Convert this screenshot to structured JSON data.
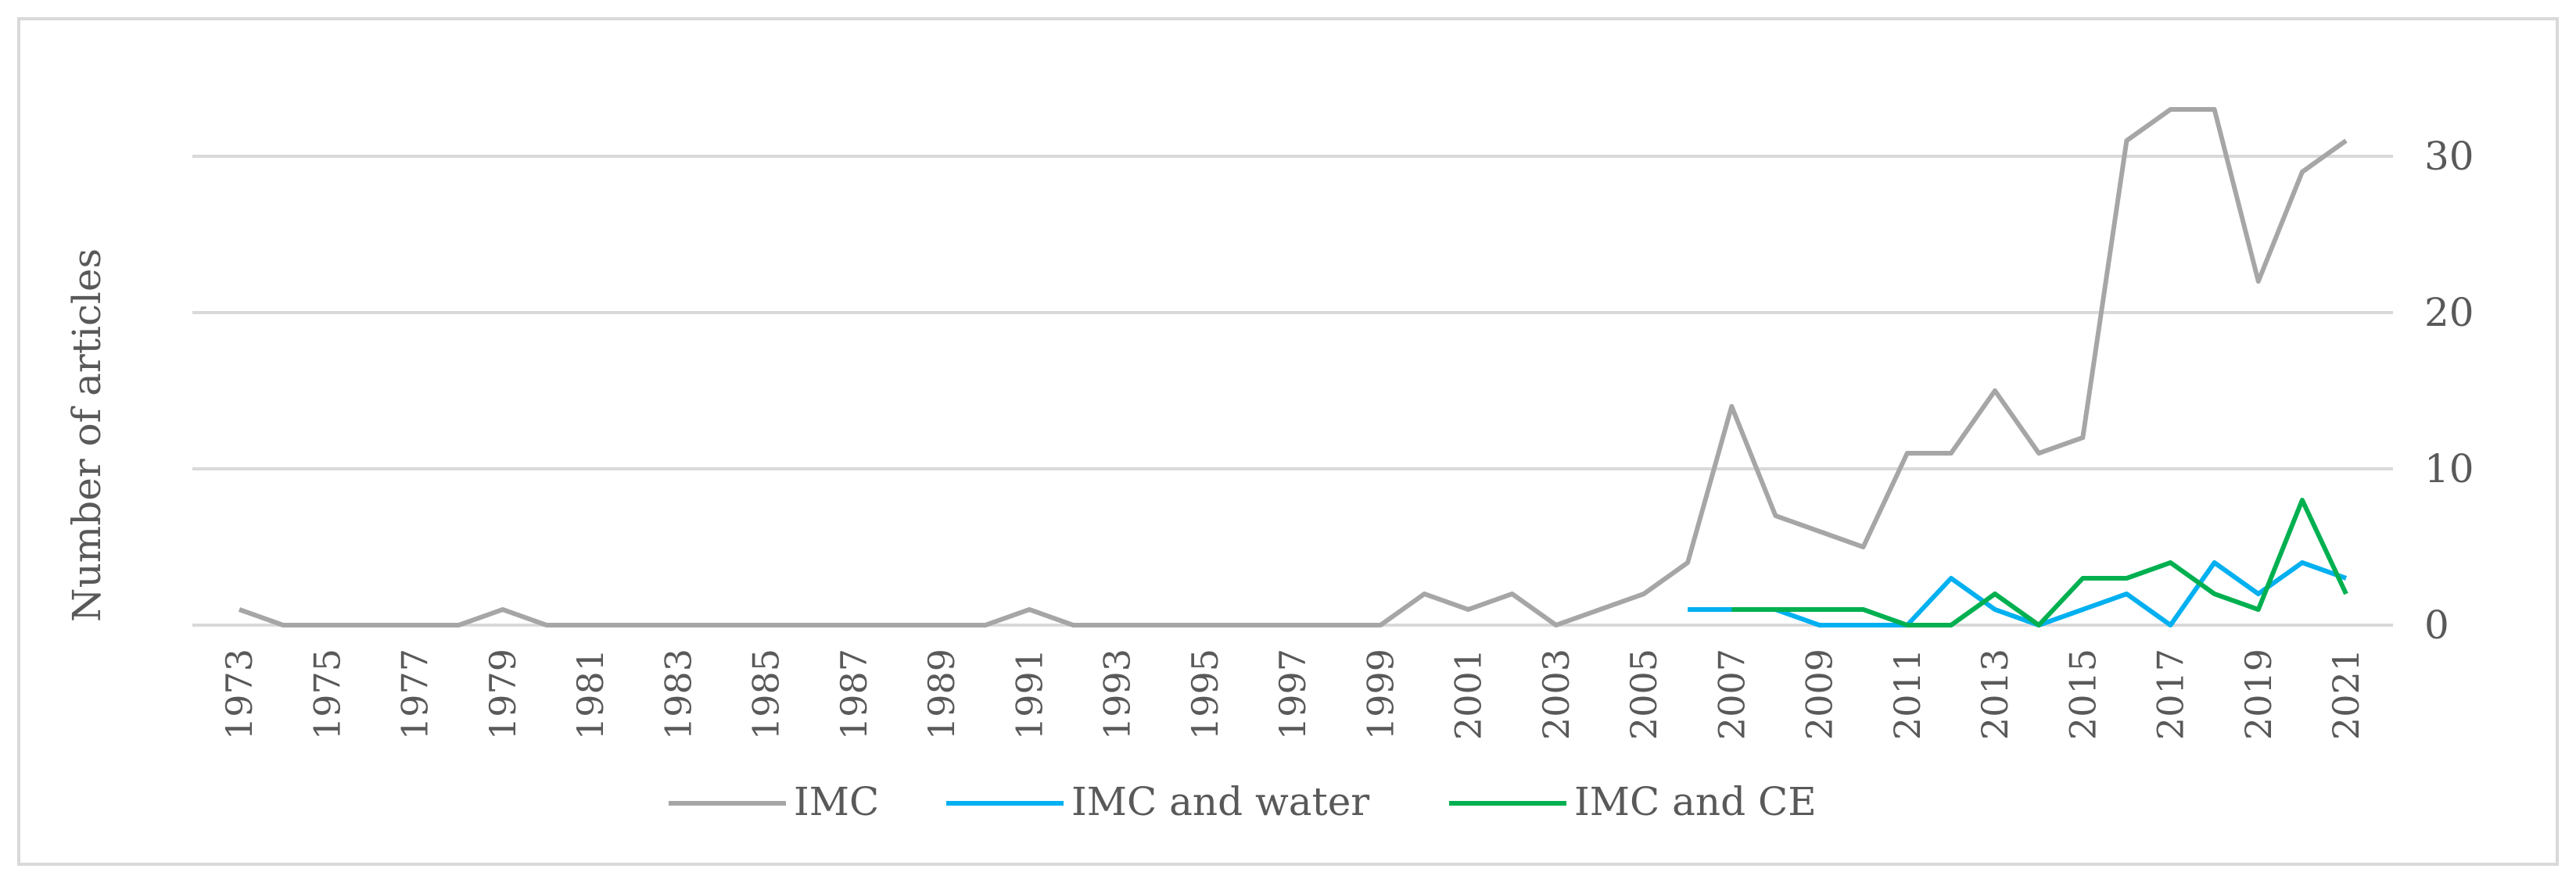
{
  "chart_data": {
    "type": "line",
    "title": "",
    "xlabel": "",
    "ylabel": "Number of articles",
    "ylim": [
      0,
      35
    ],
    "yticks": [
      0,
      10,
      20,
      30
    ],
    "y_axis_side": "right",
    "grid": true,
    "legend_position": "bottom",
    "x": [
      1973,
      1974,
      1975,
      1976,
      1977,
      1978,
      1979,
      1980,
      1981,
      1982,
      1983,
      1984,
      1985,
      1986,
      1987,
      1988,
      1989,
      1990,
      1991,
      1992,
      1993,
      1994,
      1995,
      1996,
      1997,
      1998,
      1999,
      2000,
      2001,
      2002,
      2003,
      2004,
      2005,
      2006,
      2007,
      2008,
      2009,
      2010,
      2011,
      2012,
      2013,
      2014,
      2015,
      2016,
      2017,
      2018,
      2019,
      2020,
      2021
    ],
    "x_tick_labels": [
      "1973",
      "1975",
      "1977",
      "1979",
      "1981",
      "1983",
      "1985",
      "1987",
      "1989",
      "1991",
      "1993",
      "1995",
      "1997",
      "1999",
      "2001",
      "2003",
      "2005",
      "2007",
      "2009",
      "2011",
      "2013",
      "2015",
      "2017",
      "2019",
      "2021"
    ],
    "series": [
      {
        "name": "IMC",
        "color": "#a6a6a6",
        "values": [
          1,
          0,
          0,
          0,
          0,
          0,
          1,
          0,
          0,
          0,
          0,
          0,
          0,
          0,
          0,
          0,
          0,
          0,
          1,
          0,
          0,
          0,
          0,
          0,
          0,
          0,
          0,
          2,
          1,
          2,
          0,
          1,
          2,
          4,
          14,
          7,
          6,
          5,
          11,
          11,
          15,
          11,
          12,
          31,
          33,
          33,
          22,
          29,
          31
        ]
      },
      {
        "name": "IMC and water",
        "color": "#00b0f0",
        "values": [
          null,
          null,
          null,
          null,
          null,
          null,
          null,
          null,
          null,
          null,
          null,
          null,
          null,
          null,
          null,
          null,
          null,
          null,
          null,
          null,
          null,
          null,
          null,
          null,
          null,
          null,
          null,
          null,
          null,
          null,
          null,
          null,
          null,
          1,
          1,
          1,
          0,
          0,
          0,
          3,
          1,
          0,
          1,
          2,
          0,
          4,
          2,
          4,
          3
        ]
      },
      {
        "name": "IMC and CE",
        "color": "#00b050",
        "values": [
          null,
          null,
          null,
          null,
          null,
          null,
          null,
          null,
          null,
          null,
          null,
          null,
          null,
          null,
          null,
          null,
          null,
          null,
          null,
          null,
          null,
          null,
          null,
          null,
          null,
          null,
          null,
          null,
          null,
          null,
          null,
          null,
          null,
          null,
          1,
          1,
          1,
          1,
          0,
          0,
          2,
          0,
          3,
          3,
          4,
          2,
          1,
          8,
          2
        ]
      }
    ]
  }
}
